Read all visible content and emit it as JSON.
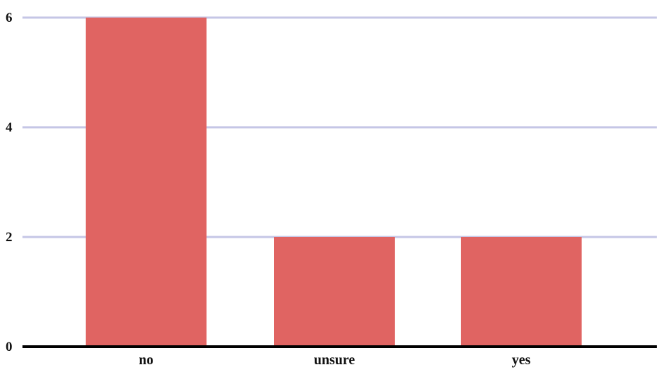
{
  "chart_data": {
    "type": "bar",
    "title": "",
    "xlabel": "",
    "ylabel": "",
    "categories": [
      "no",
      "unsure",
      "yes"
    ],
    "values": [
      6,
      2,
      2
    ],
    "ylim": [
      0,
      6
    ],
    "yticks": [
      0,
      2,
      4,
      6
    ],
    "grid": true,
    "legend": "none",
    "colors": {
      "bar": "#e06462",
      "grid": "#c5c6e6",
      "axis": "#000000"
    }
  }
}
